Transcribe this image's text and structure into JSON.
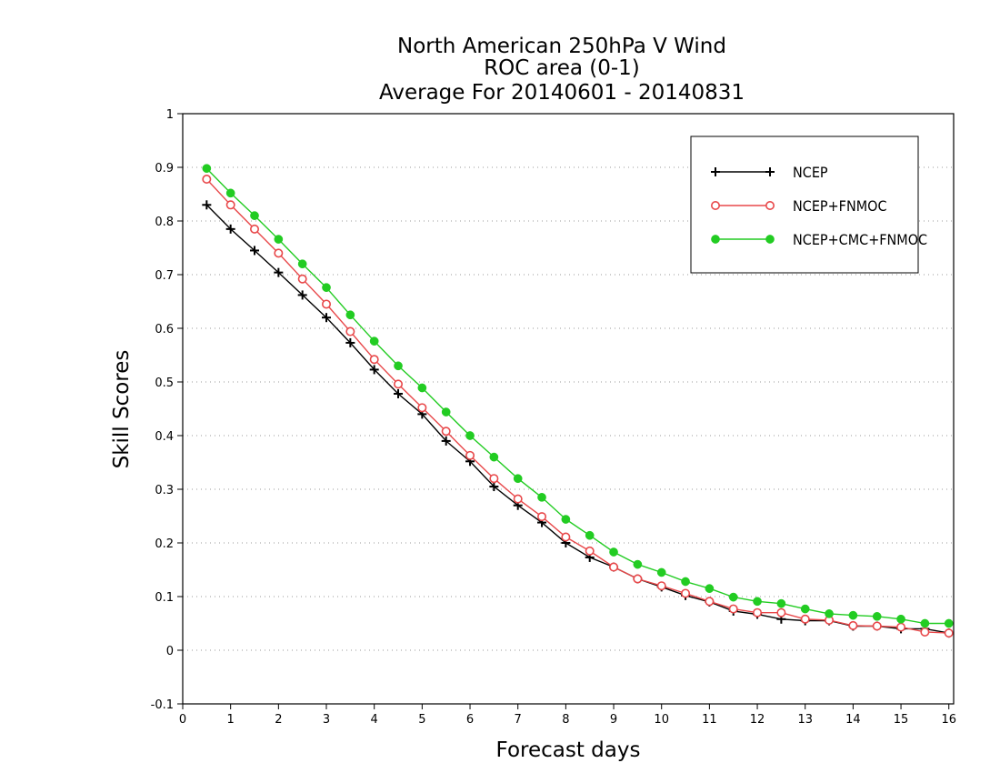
{
  "chart_data": {
    "type": "line",
    "title": [
      "North American 250hPa V Wind",
      "ROC area (0-1)",
      "Average For 20140601 - 20140831"
    ],
    "xlabel": "Forecast days",
    "ylabel": "Skill Scores",
    "xlim": [
      0,
      16.1
    ],
    "ylim": [
      -0.1,
      1
    ],
    "xticks": [
      "0",
      "1",
      "2",
      "3",
      "4",
      "5",
      "6",
      "7",
      "8",
      "9",
      "10",
      "11",
      "12",
      "13",
      "14",
      "15",
      "16"
    ],
    "yticks": [
      "-0.1",
      "0",
      "0.1",
      "0.2",
      "0.3",
      "0.4",
      "0.5",
      "0.6",
      "0.7",
      "0.8",
      "0.9",
      "1"
    ],
    "grid": "horizontal-dotted",
    "legend_position": "top-right",
    "x": [
      0.5,
      1,
      1.5,
      2,
      2.5,
      3,
      3.5,
      4,
      4.5,
      5,
      5.5,
      6,
      6.5,
      7,
      7.5,
      8,
      8.5,
      9,
      9.5,
      10,
      10.5,
      11,
      11.5,
      12,
      12.5,
      13,
      13.5,
      14,
      14.5,
      15,
      15.5,
      16
    ],
    "series": [
      {
        "name": "NCEP",
        "color": "#000000",
        "marker": "plus",
        "values": [
          0.83,
          0.785,
          0.745,
          0.704,
          0.662,
          0.62,
          0.573,
          0.523,
          0.478,
          0.44,
          0.39,
          0.352,
          0.305,
          0.27,
          0.238,
          0.2,
          0.173,
          0.155,
          0.133,
          0.118,
          0.102,
          0.09,
          0.073,
          0.067,
          0.058,
          0.055,
          0.055,
          0.045,
          0.045,
          0.04,
          0.04,
          0.032
        ]
      },
      {
        "name": "NCEP+FNMOC",
        "color": "#e8484a",
        "marker": "open-circle",
        "values": [
          0.878,
          0.83,
          0.785,
          0.74,
          0.692,
          0.645,
          0.594,
          0.542,
          0.496,
          0.452,
          0.408,
          0.363,
          0.32,
          0.282,
          0.249,
          0.211,
          0.185,
          0.155,
          0.133,
          0.12,
          0.106,
          0.091,
          0.077,
          0.07,
          0.07,
          0.058,
          0.056,
          0.046,
          0.045,
          0.043,
          0.034,
          0.032
        ]
      },
      {
        "name": "NCEP+CMC+FNMOC",
        "color": "#22cc22",
        "marker": "filled-circle",
        "values": [
          0.898,
          0.852,
          0.81,
          0.766,
          0.72,
          0.676,
          0.625,
          0.576,
          0.53,
          0.489,
          0.444,
          0.4,
          0.36,
          0.32,
          0.285,
          0.244,
          0.214,
          0.183,
          0.16,
          0.145,
          0.128,
          0.115,
          0.099,
          0.091,
          0.087,
          0.077,
          0.068,
          0.065,
          0.063,
          0.058,
          0.05,
          0.05
        ]
      }
    ]
  }
}
